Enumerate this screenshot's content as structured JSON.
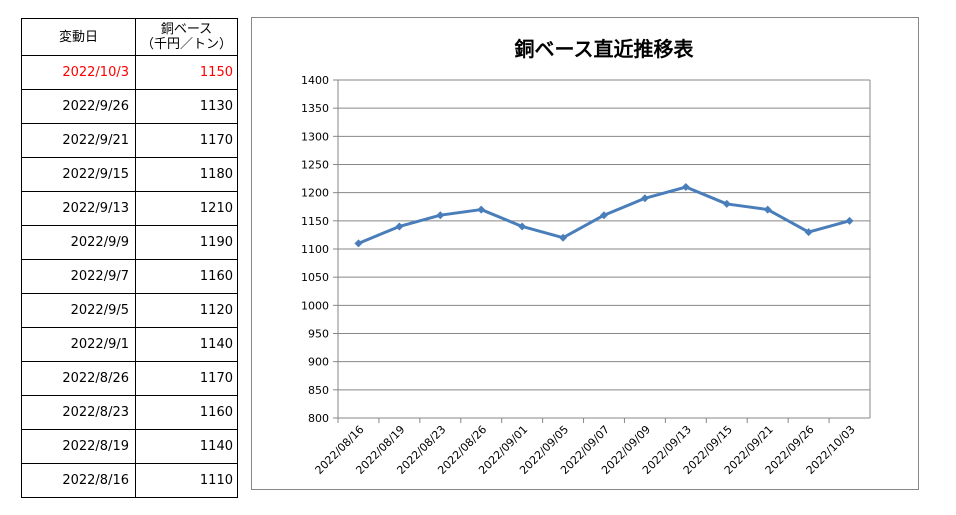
{
  "table": {
    "header": {
      "date": "変動日",
      "value_line1": "銅ベース",
      "value_line2": "（千円／トン）"
    },
    "rows": [
      {
        "date": "2022/10/3",
        "value": "1150",
        "highlight": true
      },
      {
        "date": "2022/9/26",
        "value": "1130",
        "highlight": false
      },
      {
        "date": "2022/9/21",
        "value": "1170",
        "highlight": false
      },
      {
        "date": "2022/9/15",
        "value": "1180",
        "highlight": false
      },
      {
        "date": "2022/9/13",
        "value": "1210",
        "highlight": false
      },
      {
        "date": "2022/9/9",
        "value": "1190",
        "highlight": false
      },
      {
        "date": "2022/9/7",
        "value": "1160",
        "highlight": false
      },
      {
        "date": "2022/9/5",
        "value": "1120",
        "highlight": false
      },
      {
        "date": "2022/9/1",
        "value": "1140",
        "highlight": false
      },
      {
        "date": "2022/8/26",
        "value": "1170",
        "highlight": false
      },
      {
        "date": "2022/8/23",
        "value": "1160",
        "highlight": false
      },
      {
        "date": "2022/8/19",
        "value": "1140",
        "highlight": false
      },
      {
        "date": "2022/8/16",
        "value": "1110",
        "highlight": false
      }
    ],
    "highlight_color": "#ff0000"
  },
  "chart_data": {
    "type": "line",
    "title": "銅ベース直近推移表",
    "categories": [
      "2022/08/16",
      "2022/08/19",
      "2022/08/23",
      "2022/08/26",
      "2022/09/01",
      "2022/09/05",
      "2022/09/07",
      "2022/09/09",
      "2022/09/13",
      "2022/09/15",
      "2022/09/21",
      "2022/09/26",
      "2022/10/03"
    ],
    "series": [
      {
        "values": [
          1110,
          1140,
          1160,
          1170,
          1140,
          1120,
          1160,
          1190,
          1210,
          1180,
          1170,
          1130,
          1150
        ],
        "color": "#4a7ebb",
        "marker": "diamond"
      }
    ],
    "xlabel": "",
    "ylabel": "",
    "ylim": [
      800,
      1400
    ],
    "ystep": 50,
    "grid": "horizontal",
    "legend": "none"
  }
}
